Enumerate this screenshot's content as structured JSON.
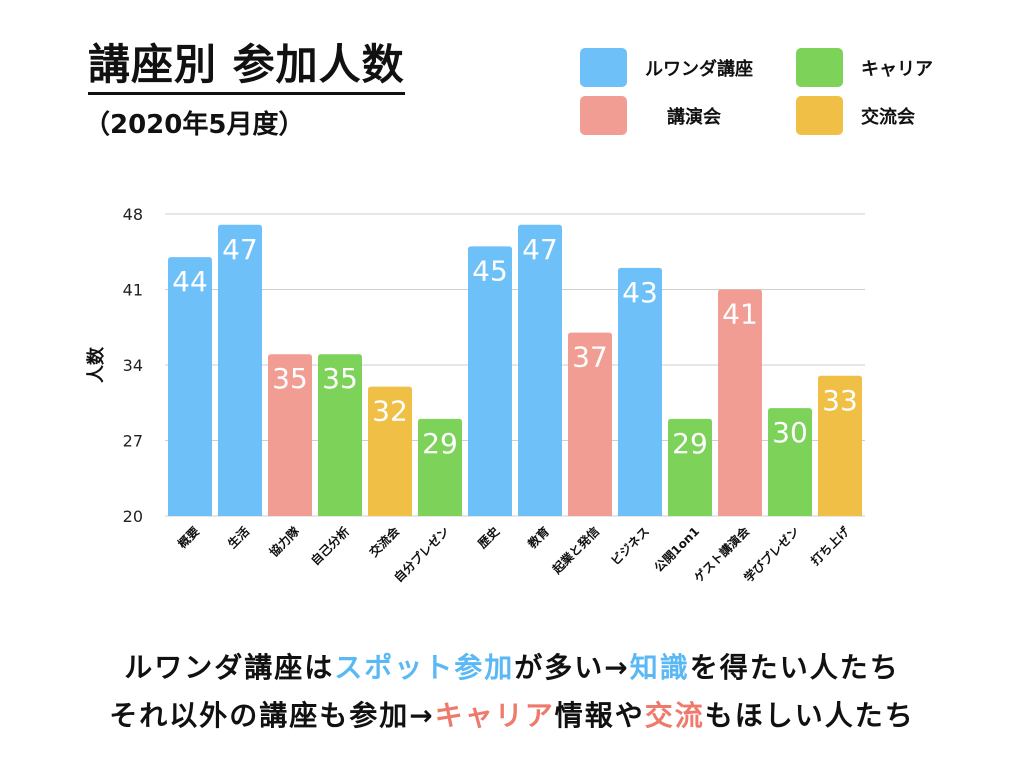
{
  "header": {
    "title": "講座別 参加人数",
    "subtitle": "（2020年5月度）"
  },
  "legend": [
    {
      "label": "ルワンダ講座",
      "color": "#6ec0f8"
    },
    {
      "label": "キャリア",
      "color": "#7dd35a"
    },
    {
      "label": "講演会",
      "color": "#f29d93"
    },
    {
      "label": "交流会",
      "color": "#f0bf45"
    }
  ],
  "notes": {
    "line1": {
      "a": "ルワンダ講座は",
      "b": "スポット参加",
      "c": "が多い→",
      "d": "知識",
      "e": "を得たい人たち"
    },
    "line2": {
      "a": "それ以外の講座も参加→",
      "b": "キャリア",
      "c": "情報や",
      "d": "交流",
      "e": "もほしい人たち"
    }
  },
  "chart_data": {
    "type": "bar",
    "title": "講座別 参加人数",
    "subtitle": "（2020年5月度）",
    "xlabel": "",
    "ylabel": "人数",
    "ylim": [
      20,
      48
    ],
    "yticks": [
      20,
      27,
      34,
      41,
      48
    ],
    "grid": true,
    "legend_position": "top-right",
    "categories": [
      "概要",
      "生活",
      "協力隊",
      "自己分析",
      "交流会",
      "自分プレゼン",
      "歴史",
      "教育",
      "起業と発信",
      "ビジネス",
      "公開1on1",
      "ゲスト講演会",
      "学びプレゼン",
      "打ち上げ"
    ],
    "values": [
      44,
      47,
      35,
      35,
      32,
      29,
      45,
      47,
      37,
      43,
      29,
      41,
      30,
      33
    ],
    "groups": [
      "ルワンダ講座",
      "ルワンダ講座",
      "講演会",
      "キャリア",
      "交流会",
      "キャリア",
      "ルワンダ講座",
      "ルワンダ講座",
      "講演会",
      "ルワンダ講座",
      "キャリア",
      "講演会",
      "キャリア",
      "交流会"
    ]
  }
}
